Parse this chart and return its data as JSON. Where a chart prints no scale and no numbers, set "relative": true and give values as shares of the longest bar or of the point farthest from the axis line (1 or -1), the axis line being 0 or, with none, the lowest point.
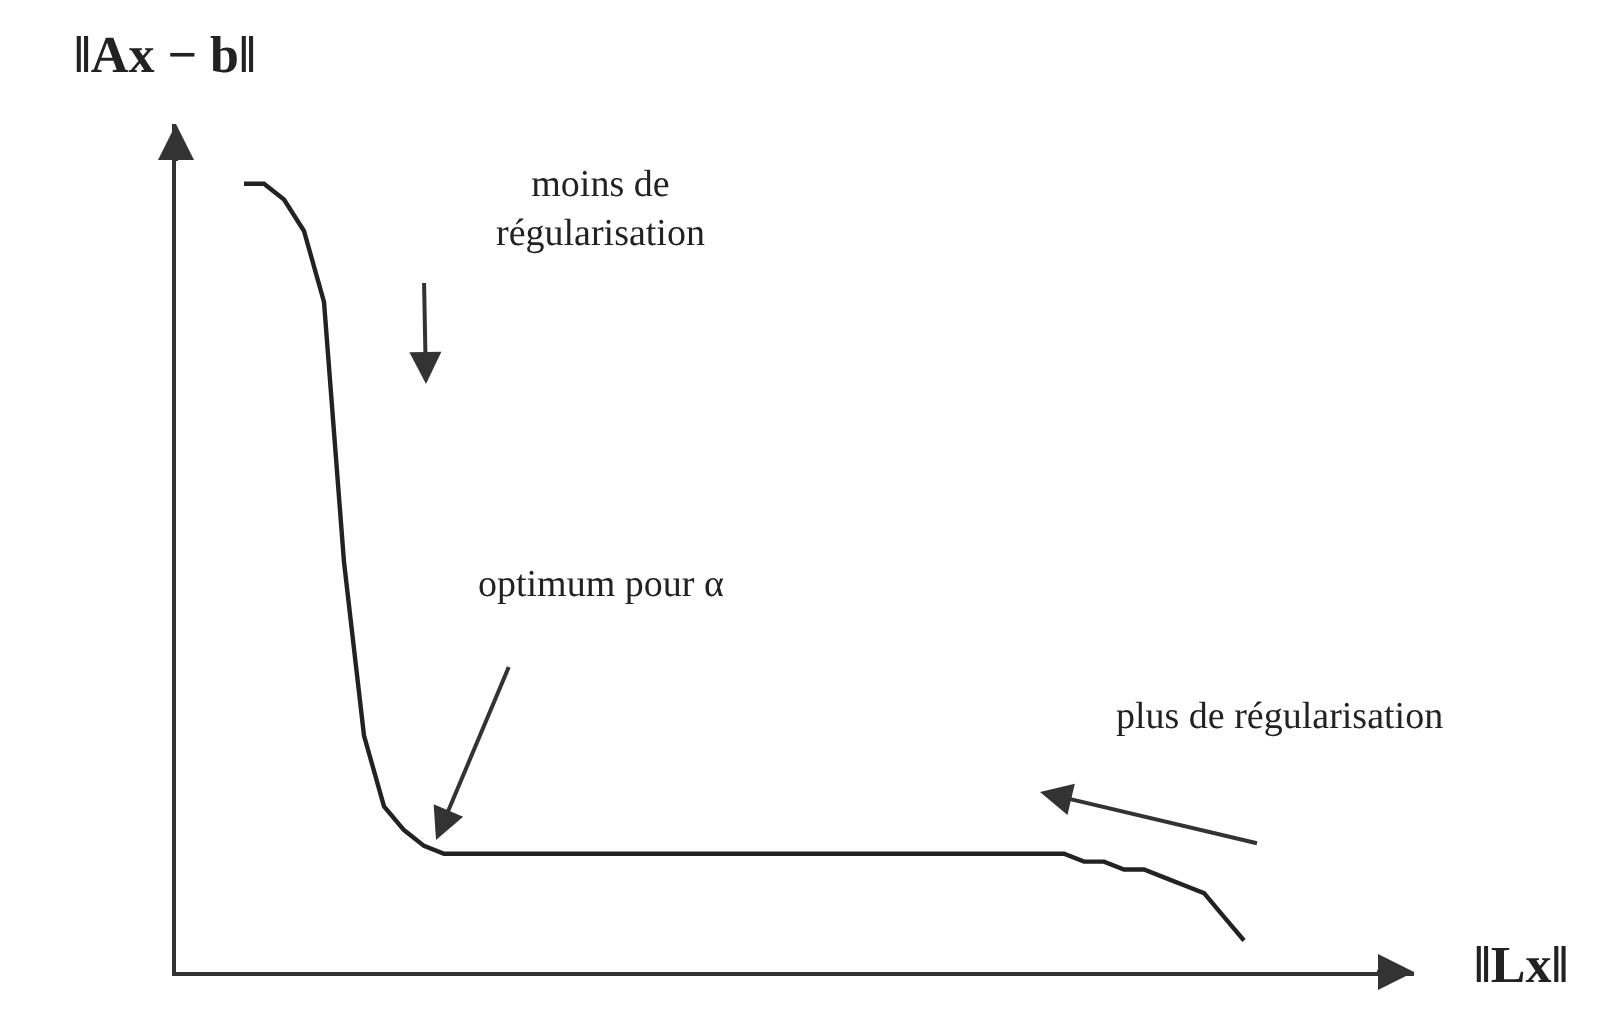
{
  "chart_data": {
    "type": "line",
    "relative": true,
    "xlabel": "‖Lx‖",
    "ylabel": "‖Ax − b‖",
    "color": "#222222",
    "marker": "none",
    "line_style": "solid",
    "categories": [
      null,
      null,
      null,
      null,
      null,
      null,
      null,
      null,
      null,
      null,
      null,
      null,
      null,
      null,
      null,
      null,
      null,
      null,
      null,
      null,
      null,
      null,
      null,
      null,
      null,
      null,
      null,
      null,
      null,
      null,
      null,
      null,
      null,
      null,
      null,
      null,
      null,
      null,
      null,
      null,
      null,
      null,
      null,
      null,
      null,
      null,
      null,
      null,
      null,
      null,
      null
    ],
    "values": [
      1,
      1.0,
      0.98,
      0.94,
      0.85,
      0.52,
      0.3,
      0.21,
      0.18,
      0.16,
      0.15,
      0.15,
      0.15,
      0.15,
      0.15,
      0.15,
      0.15,
      0.15,
      0.15,
      0.15,
      0.15,
      0.15,
      0.15,
      0.15,
      0.15,
      0.15,
      0.15,
      0.15,
      0.15,
      0.15,
      0.15,
      0.15,
      0.15,
      0.15,
      0.15,
      0.15,
      0.15,
      0.15,
      0.15,
      0.15,
      0.15,
      0.15,
      0.14,
      0.14,
      0.13,
      0.13,
      0.12,
      0.11,
      0.1,
      0.07,
      0.04
    ],
    "annotations": [
      "moins de\nrégularisation",
      "optimum pour α",
      "plus de régularisation"
    ]
  }
}
